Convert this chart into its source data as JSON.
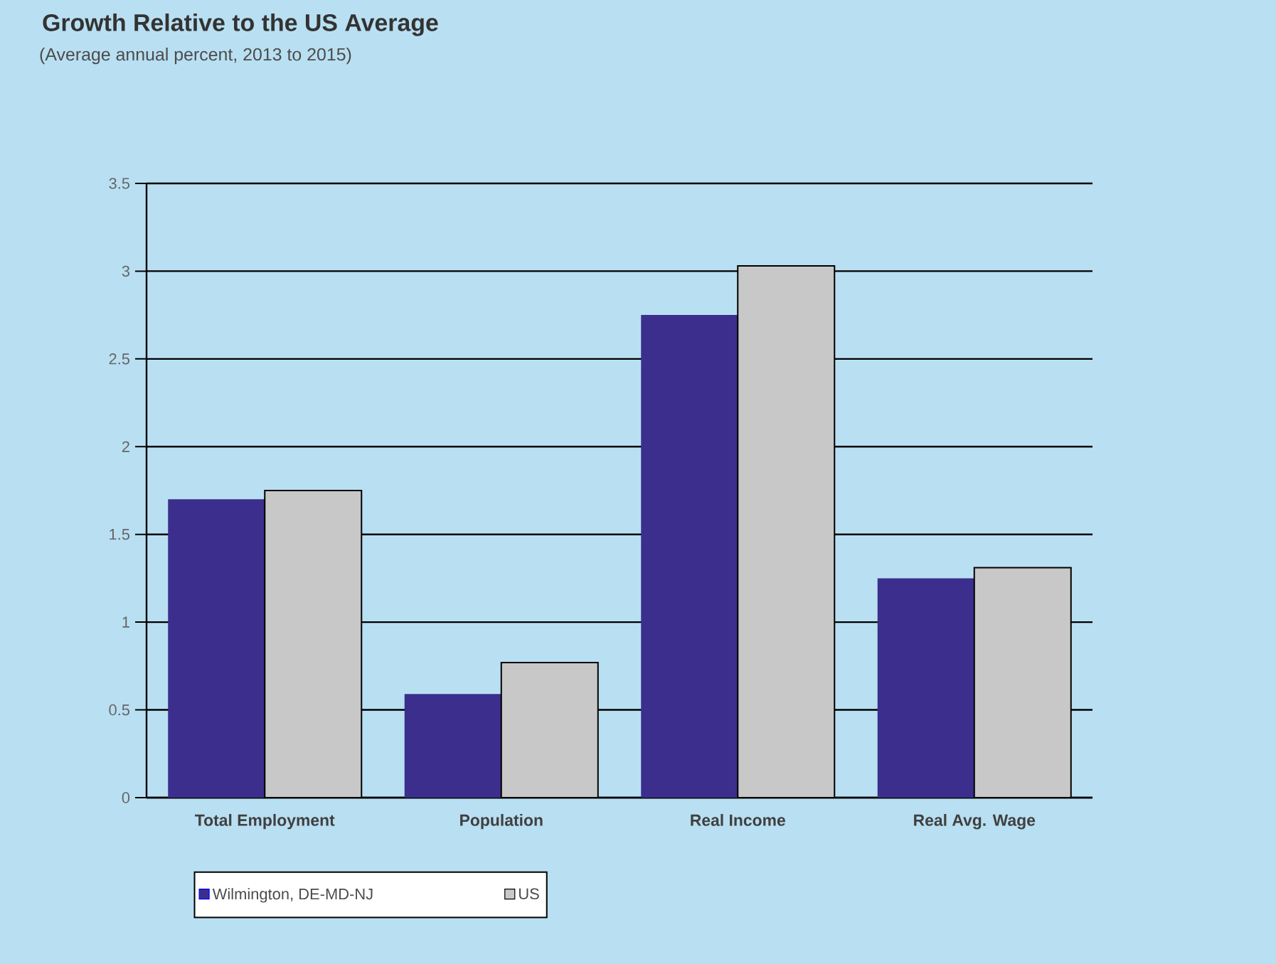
{
  "chart_data": {
    "type": "bar",
    "title": "Growth Relative to the US Average",
    "subtitle": "(Average annual percent, 2013 to 2015)",
    "categories": [
      "Total Employment",
      "Population",
      "Real Income",
      "Real Avg. Wage"
    ],
    "series": [
      {
        "name": "Wilmington, DE-MD-NJ",
        "color": "#3b2e8c",
        "values": [
          1.7,
          0.59,
          2.75,
          1.25
        ]
      },
      {
        "name": "US",
        "color": "#c8c8c8",
        "values": [
          1.75,
          0.77,
          3.03,
          1.31
        ]
      }
    ],
    "ylim": [
      0,
      3.5
    ],
    "yticks": [
      0,
      0.5,
      1,
      1.5,
      2,
      2.5,
      3,
      3.5
    ],
    "grid": "y",
    "legend": "bottom"
  }
}
